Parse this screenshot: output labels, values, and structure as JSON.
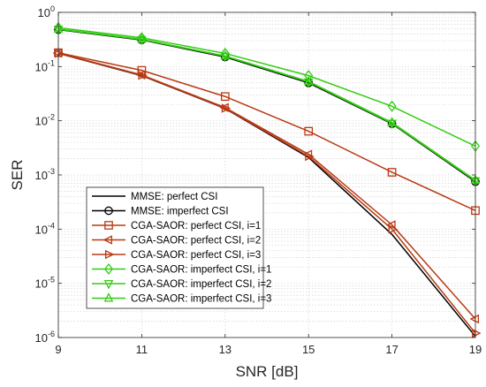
{
  "chart_data": {
    "type": "line",
    "xlabel": "SNR [dB]",
    "ylabel": "SER",
    "x": [
      9,
      11,
      13,
      15,
      17,
      19
    ],
    "xlim": [
      9,
      19
    ],
    "ylim": [
      1e-06,
      1
    ],
    "yscale": "log",
    "xticks": [
      "9",
      "11",
      "13",
      "15",
      "17",
      "19"
    ],
    "yticks": [
      {
        "base": "10",
        "exp": "0"
      },
      {
        "base": "10",
        "exp": "-1"
      },
      {
        "base": "10",
        "exp": "-2"
      },
      {
        "base": "10",
        "exp": "-3"
      },
      {
        "base": "10",
        "exp": "-4"
      },
      {
        "base": "10",
        "exp": "-5"
      },
      {
        "base": "10",
        "exp": "-6"
      }
    ],
    "grid": true,
    "legend_position": "bottom-left",
    "series": [
      {
        "name": "MMSE: perfect CSI",
        "color": "#000000",
        "marker": "none",
        "values": [
          0.175,
          0.068,
          0.0168,
          0.0021,
          8e-05,
          1.05e-06
        ]
      },
      {
        "name": "MMSE: imperfect CSI",
        "color": "#000000",
        "marker": "circle",
        "values": [
          0.48,
          0.31,
          0.15,
          0.05,
          0.0088,
          0.00075
        ]
      },
      {
        "name": "CGA-SAOR: perfect CSI, i=1",
        "color": "#b83a14",
        "marker": "square",
        "values": [
          0.18,
          0.085,
          0.028,
          0.0064,
          0.00112,
          0.00022
        ]
      },
      {
        "name": "CGA-SAOR: perfect CSI, i=2",
        "color": "#b83a14",
        "marker": "triangle-left",
        "values": [
          0.178,
          0.07,
          0.0175,
          0.0024,
          0.00012,
          2.2e-06
        ]
      },
      {
        "name": "CGA-SAOR: perfect CSI, i=3",
        "color": "#b83a14",
        "marker": "triangle-right",
        "values": [
          0.176,
          0.069,
          0.017,
          0.0022,
          0.0001,
          1.2e-06
        ]
      },
      {
        "name": "CGA-SAOR: imperfect CSI, i=1",
        "color": "#33cc14",
        "marker": "diamond",
        "values": [
          0.52,
          0.34,
          0.175,
          0.068,
          0.0185,
          0.0034
        ]
      },
      {
        "name": "CGA-SAOR: imperfect CSI, i=2",
        "color": "#33cc14",
        "marker": "triangle-down",
        "values": [
          0.49,
          0.315,
          0.155,
          0.052,
          0.009,
          0.00078
        ]
      },
      {
        "name": "CGA-SAOR: imperfect CSI, i=3",
        "color": "#33cc14",
        "marker": "triangle-up",
        "values": [
          0.49,
          0.318,
          0.157,
          0.053,
          0.0093,
          0.0008
        ]
      }
    ]
  }
}
